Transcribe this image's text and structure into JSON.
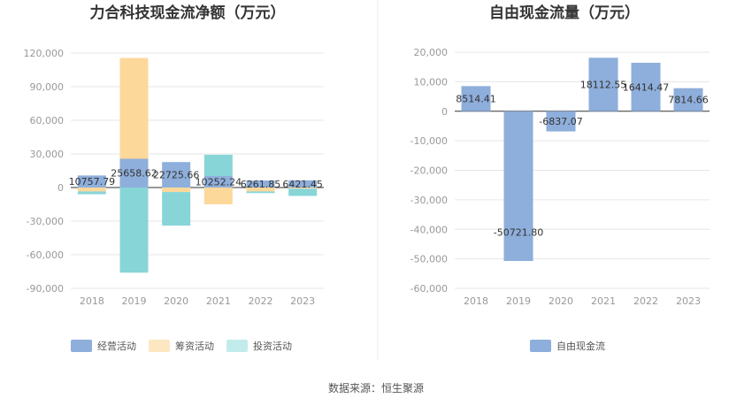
{
  "source": "数据来源：恒生聚源",
  "colors": {
    "operating": "#8eaedb",
    "financing": "#fdd89b",
    "investing": "#88d5d8",
    "fcf": "#8eaedb",
    "grid": "#e6e6e6",
    "axis": "#999999"
  },
  "chart_data": [
    {
      "type": "bar",
      "title": "力合科技现金流净额（万元）",
      "categories": [
        "2018",
        "2019",
        "2020",
        "2021",
        "2022",
        "2023"
      ],
      "ylim": [
        -90000,
        120000
      ],
      "yticks": [
        120000,
        90000,
        60000,
        30000,
        0,
        -30000,
        -60000,
        -90000
      ],
      "ytick_labels": [
        "120,000",
        "90,000",
        "60,000",
        "30,000",
        "0",
        "-30,000",
        "-60,000",
        "-90,000"
      ],
      "stacked": true,
      "legend_position": "bottom",
      "series": [
        {
          "name": "经营活动",
          "values": [
            10757.79,
            25658.62,
            22725.66,
            10252.24,
            6261.85,
            6421.45
          ]
        },
        {
          "name": "筹资活动",
          "values": [
            -3500,
            90000,
            -4000,
            -15000,
            -3500,
            -1000
          ]
        },
        {
          "name": "投资活动",
          "values": [
            -2500,
            -76000,
            -30000,
            19000,
            -1500,
            -6500
          ]
        }
      ],
      "data_labels": [
        "10757.79",
        "25658.62",
        "22725.66",
        "10252.24",
        "6261.85",
        "6421.45"
      ]
    },
    {
      "type": "bar",
      "title": "自由现金流量（万元）",
      "categories": [
        "2018",
        "2019",
        "2020",
        "2021",
        "2022",
        "2023"
      ],
      "ylim": [
        -60000,
        20000
      ],
      "yticks": [
        20000,
        10000,
        0,
        -10000,
        -20000,
        -30000,
        -40000,
        -50000,
        -60000
      ],
      "ytick_labels": [
        "20,000",
        "10,000",
        "0",
        "-10,000",
        "-20,000",
        "-30,000",
        "-40,000",
        "-50,000",
        "-60,000"
      ],
      "legend_position": "bottom",
      "series": [
        {
          "name": "自由现金流",
          "values": [
            8514.41,
            -50721.8,
            -6837.07,
            18112.55,
            16414.47,
            7814.66
          ]
        }
      ],
      "data_labels": [
        "8514.41",
        "-50721.80",
        "-6837.07",
        "18112.55",
        "16414.47",
        "7814.66"
      ]
    }
  ]
}
